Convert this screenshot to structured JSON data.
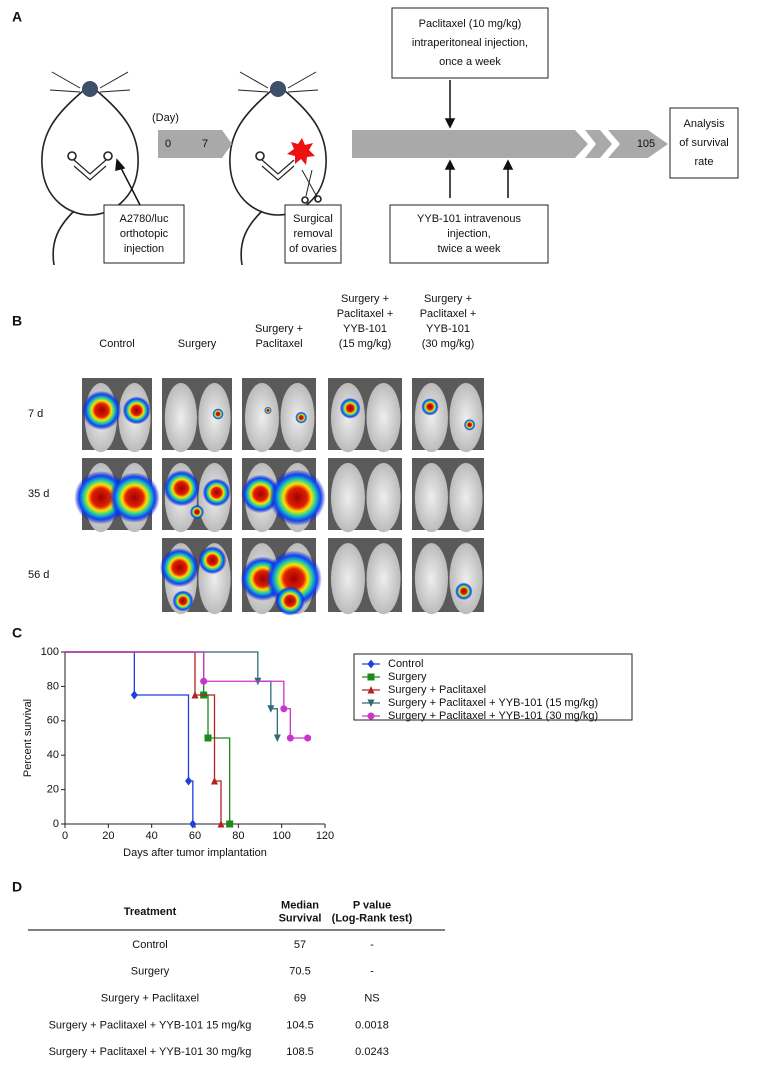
{
  "panel_a": {
    "label": "A",
    "day_label": "(Day)",
    "day_start": "0",
    "day_surgery": "7",
    "day_end": "105",
    "injection": [
      "A2780/luc",
      "orthotopic",
      "injection"
    ],
    "surgery": [
      "Surgical",
      "removal",
      "of ovaries"
    ],
    "paclitaxel": [
      "Paclitaxel (10 mg/kg)",
      "intraperitoneal injection,",
      "once a week"
    ],
    "yyb": [
      "YYB-101 intravenous",
      "injection,",
      "twice a week"
    ],
    "analysis": [
      "Analysis",
      "of survival",
      "rate"
    ]
  },
  "panel_b": {
    "label": "B",
    "columns": [
      [
        "Control"
      ],
      [
        "Surgery"
      ],
      [
        "Surgery +",
        "Paclitaxel"
      ],
      [
        "Surgery +",
        "Paclitaxel +",
        "YYB-101",
        "(15 mg/kg)"
      ],
      [
        "Surgery +",
        "Paclitaxel +",
        "YYB-101",
        "(30 mg/kg)"
      ]
    ],
    "rows": [
      "7 d",
      "35 d",
      "56 d"
    ]
  },
  "chart_data": {
    "type": "step",
    "label": "C",
    "x_label": "Days after tumor implantation",
    "y_label": "Percent survival",
    "xlim": [
      0,
      120
    ],
    "xticks": [
      0,
      20,
      40,
      60,
      80,
      100,
      120
    ],
    "ylim": [
      0,
      100
    ],
    "yticks": [
      0,
      20,
      40,
      60,
      80,
      100
    ],
    "series": [
      {
        "name": "Control",
        "color": "#1f3fe0",
        "marker": "diamond",
        "x": [
          0,
          32,
          57,
          59
        ],
        "values": [
          100,
          75,
          25,
          0
        ]
      },
      {
        "name": "Surgery",
        "color": "#1a8a1a",
        "marker": "square",
        "x": [
          0,
          64,
          66,
          76
        ],
        "values": [
          100,
          75,
          50,
          0
        ]
      },
      {
        "name": "Surgery + Paclitaxel",
        "color": "#b22222",
        "marker": "triangle-up",
        "x": [
          0,
          60,
          69,
          72
        ],
        "values": [
          100,
          75,
          25,
          0
        ]
      },
      {
        "name": "Surgery + Paclitaxel + YYB-101 (15 mg/kg)",
        "color": "#2f6b73",
        "marker": "triangle-down",
        "x": [
          0,
          89,
          95,
          98
        ],
        "values": [
          100,
          83,
          67,
          50
        ]
      },
      {
        "name": "Surgery + Paclitaxel + YYB-101 (30 mg/kg)",
        "color": "#cc33cc",
        "marker": "circle",
        "x": [
          0,
          64,
          101,
          104,
          112
        ],
        "values": [
          100,
          83,
          67,
          50,
          50
        ]
      }
    ]
  },
  "table": {
    "label": "D",
    "header": [
      [
        "Treatment"
      ],
      [
        "Median",
        "Survival"
      ],
      [
        "P value",
        "(Log-Rank test)"
      ]
    ],
    "rows": [
      [
        "Control",
        "57",
        "-"
      ],
      [
        "Surgery",
        "70.5",
        "-"
      ],
      [
        "Surgery + Paclitaxel",
        "69",
        "NS"
      ],
      [
        "Surgery + Paclitaxel + YYB-101 15 mg/kg",
        "104.5",
        "0.0018"
      ],
      [
        "Surgery + Paclitaxel + YYB-101 30 mg/kg",
        "108.5",
        "0.0243"
      ]
    ]
  }
}
